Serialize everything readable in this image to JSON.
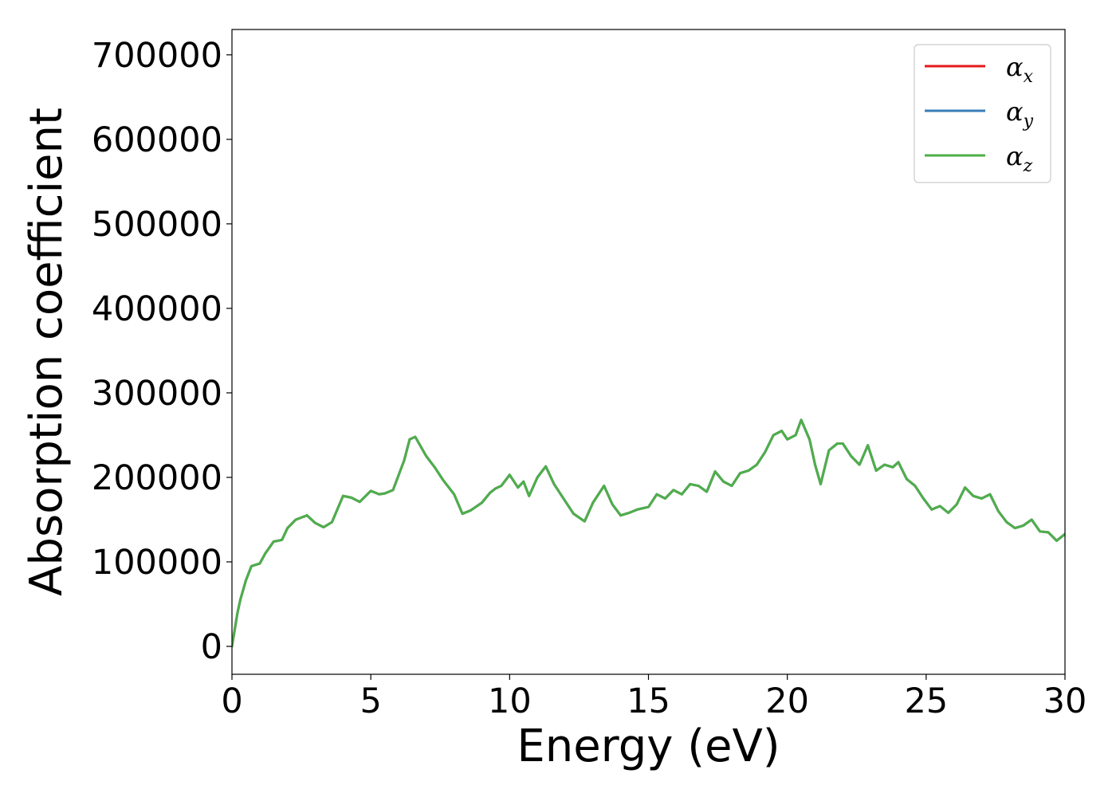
{
  "chart_data": {
    "type": "line",
    "title": "",
    "xlabel": "Energy (eV)",
    "ylabel": "Absorption coefficient",
    "xlim": [
      0,
      30
    ],
    "ylim": [
      -33000,
      730000
    ],
    "x_ticks": [
      0,
      5,
      10,
      15,
      20,
      25,
      30
    ],
    "y_ticks": [
      0,
      100000,
      200000,
      300000,
      400000,
      500000,
      600000,
      700000
    ],
    "grid": false,
    "legend_position": "top-right",
    "x": [
      0,
      0.1,
      0.2,
      0.3,
      0.5,
      0.7,
      1.0,
      1.2,
      1.5,
      1.8,
      2.0,
      2.3,
      2.7,
      3.0,
      3.3,
      3.6,
      4.0,
      4.3,
      4.6,
      5.0,
      5.3,
      5.5,
      5.8,
      6.2,
      6.4,
      6.6,
      7.0,
      7.3,
      7.6,
      8.0,
      8.3,
      8.6,
      9.0,
      9.3,
      9.5,
      9.7,
      10.0,
      10.3,
      10.5,
      10.7,
      11.0,
      11.3,
      11.6,
      12.0,
      12.3,
      12.7,
      13.0,
      13.4,
      13.7,
      14.0,
      14.3,
      14.6,
      15.0,
      15.3,
      15.6,
      15.9,
      16.2,
      16.5,
      16.8,
      17.1,
      17.4,
      17.7,
      18.0,
      18.3,
      18.6,
      18.9,
      19.2,
      19.5,
      19.8,
      20.0,
      20.3,
      20.5,
      20.8,
      21.0,
      21.2,
      21.5,
      21.8,
      22.0,
      22.3,
      22.6,
      22.9,
      23.2,
      23.5,
      23.8,
      24.0,
      24.3,
      24.6,
      24.9,
      25.2,
      25.5,
      25.8,
      26.1,
      26.4,
      26.7,
      27.0,
      27.3,
      27.6,
      27.9,
      28.2,
      28.5,
      28.8,
      29.1,
      29.4,
      29.7,
      30.0
    ],
    "series": [
      {
        "name": "αx",
        "color": "#e41a1c",
        "values": [
          0,
          20000,
          40000,
          55000,
          78000,
          95000,
          98000,
          110000,
          124000,
          126000,
          140000,
          150000,
          155000,
          146000,
          141000,
          147000,
          178000,
          176000,
          171000,
          184000,
          180000,
          181000,
          185000,
          220000,
          245000,
          248000,
          225000,
          212000,
          197000,
          180000,
          157000,
          161000,
          170000,
          182000,
          187000,
          190000,
          203000,
          188000,
          195000,
          178000,
          200000,
          213000,
          192000,
          172000,
          157000,
          148000,
          170000,
          190000,
          168000,
          155000,
          158000,
          162000,
          165000,
          180000,
          175000,
          185000,
          180000,
          192000,
          190000,
          183000,
          207000,
          195000,
          190000,
          205000,
          208000,
          215000,
          230000,
          250000,
          255000,
          245000,
          250000,
          268000,
          245000,
          215000,
          192000,
          232000,
          240000,
          240000,
          225000,
          215000,
          238000,
          208000,
          215000,
          212000,
          218000,
          198000,
          190000,
          175000,
          162000,
          166000,
          158000,
          168000,
          188000,
          178000,
          175000,
          180000,
          160000,
          147000,
          140000,
          143000,
          150000,
          136000,
          135000,
          125000,
          133000
        ]
      },
      {
        "name": "αy",
        "color": "#377eb8",
        "values": [
          0,
          20000,
          40000,
          55000,
          78000,
          95000,
          98000,
          110000,
          124000,
          126000,
          140000,
          150000,
          155000,
          146000,
          141000,
          147000,
          178000,
          176000,
          171000,
          184000,
          180000,
          181000,
          185000,
          220000,
          245000,
          248000,
          225000,
          212000,
          197000,
          180000,
          157000,
          161000,
          170000,
          182000,
          187000,
          190000,
          203000,
          188000,
          195000,
          178000,
          200000,
          213000,
          192000,
          172000,
          157000,
          148000,
          170000,
          190000,
          168000,
          155000,
          158000,
          162000,
          165000,
          180000,
          175000,
          185000,
          180000,
          192000,
          190000,
          183000,
          207000,
          195000,
          190000,
          205000,
          208000,
          215000,
          230000,
          250000,
          255000,
          245000,
          250000,
          268000,
          245000,
          215000,
          192000,
          232000,
          240000,
          240000,
          225000,
          215000,
          238000,
          208000,
          215000,
          212000,
          218000,
          198000,
          190000,
          175000,
          162000,
          166000,
          158000,
          168000,
          188000,
          178000,
          175000,
          180000,
          160000,
          147000,
          140000,
          143000,
          150000,
          136000,
          135000,
          125000,
          133000
        ]
      },
      {
        "name": "αz",
        "color": "#4daf4a",
        "values": [
          0,
          20000,
          40000,
          55000,
          78000,
          95000,
          98000,
          110000,
          124000,
          126000,
          140000,
          150000,
          155000,
          146000,
          141000,
          147000,
          178000,
          176000,
          171000,
          184000,
          180000,
          181000,
          185000,
          220000,
          245000,
          248000,
          225000,
          212000,
          197000,
          180000,
          157000,
          161000,
          170000,
          182000,
          187000,
          190000,
          203000,
          188000,
          195000,
          178000,
          200000,
          213000,
          192000,
          172000,
          157000,
          148000,
          170000,
          190000,
          168000,
          155000,
          158000,
          162000,
          165000,
          180000,
          175000,
          185000,
          180000,
          192000,
          190000,
          183000,
          207000,
          195000,
          190000,
          205000,
          208000,
          215000,
          230000,
          250000,
          255000,
          245000,
          250000,
          268000,
          245000,
          215000,
          192000,
          232000,
          240000,
          240000,
          225000,
          215000,
          238000,
          208000,
          215000,
          212000,
          218000,
          198000,
          190000,
          175000,
          162000,
          166000,
          158000,
          168000,
          188000,
          178000,
          175000,
          180000,
          160000,
          147000,
          140000,
          143000,
          150000,
          136000,
          135000,
          125000,
          133000
        ]
      }
    ]
  }
}
